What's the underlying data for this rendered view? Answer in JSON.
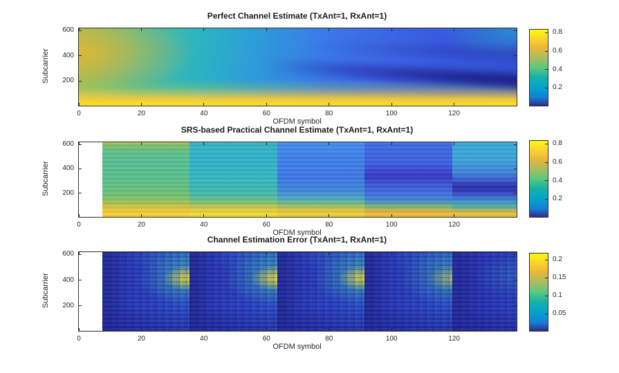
{
  "figure": {
    "background": "#ffffff",
    "colormap": "parula",
    "colormap_stops": [
      "#352a87",
      "#1480d6",
      "#06a4ca",
      "#16b0a7",
      "#59c97e",
      "#a5be64",
      "#e6b63b",
      "#fcd030",
      "#f9fb0e"
    ],
    "text_color": "#262626",
    "axis_color": "#2b2b2b"
  },
  "panels": [
    {
      "title": "Perfect Channel Estimate (TxAnt=1, RxAnt=1)",
      "xlabel": "OFDM symbol",
      "ylabel": "Subcarrier",
      "x_range": [
        0,
        140
      ],
      "y_range": [
        0,
        624
      ],
      "x_ticks": [
        0,
        20,
        40,
        60,
        80,
        100,
        120
      ],
      "y_ticks": [
        200,
        400,
        600
      ],
      "colorbar": {
        "range": [
          0,
          0.84
        ],
        "ticks": [
          0.2,
          0.4,
          0.6,
          0.8
        ]
      }
    },
    {
      "title": "SRS-based Practical Channel Estimate (TxAnt=1, RxAnt=1)",
      "xlabel": "OFDM symbol",
      "ylabel": "Subcarrier",
      "x_range": [
        0,
        140
      ],
      "y_range": [
        0,
        624
      ],
      "x_ticks": [
        0,
        20,
        40,
        60,
        80,
        100,
        120
      ],
      "y_ticks": [
        200,
        400,
        600
      ],
      "colorbar": {
        "range": [
          0,
          0.84
        ],
        "ticks": [
          0.2,
          0.4,
          0.6,
          0.8
        ]
      }
    },
    {
      "title": "Channel Estimation Error (TxAnt=1, RxAnt=1)",
      "xlabel": "OFDM symbol",
      "ylabel": "Subcarrier",
      "x_range": [
        0,
        140
      ],
      "y_range": [
        0,
        624
      ],
      "x_ticks": [
        0,
        20,
        40,
        60,
        80,
        100,
        120
      ],
      "y_ticks": [
        200,
        400,
        600
      ],
      "colorbar": {
        "range": [
          0,
          0.22
        ],
        "ticks": [
          0.05,
          0.1,
          0.15,
          0.2
        ]
      }
    }
  ],
  "chart_data": [
    {
      "type": "heatmap",
      "title": "Perfect Channel Estimate (TxAnt=1, RxAnt=1)",
      "xlabel": "OFDM symbol",
      "ylabel": "Subcarrier",
      "x_range": [
        0,
        140
      ],
      "y_range": [
        0,
        624
      ],
      "color_range": [
        0,
        0.84
      ],
      "legend_position": "colorbar-right",
      "grid": false,
      "x": [
        5,
        20,
        34,
        48,
        62,
        76,
        90,
        104,
        118,
        132
      ],
      "y_subcarrier": [
        600,
        500,
        400,
        300,
        200,
        100,
        50
      ],
      "values": [
        [
          0.72,
          0.62,
          0.52,
          0.45,
          0.4,
          0.36,
          0.32,
          0.3,
          0.28,
          0.33
        ],
        [
          0.65,
          0.55,
          0.48,
          0.43,
          0.38,
          0.33,
          0.3,
          0.28,
          0.26,
          0.3
        ],
        [
          0.6,
          0.52,
          0.47,
          0.42,
          0.36,
          0.3,
          0.26,
          0.22,
          0.2,
          0.22
        ],
        [
          0.62,
          0.55,
          0.5,
          0.44,
          0.38,
          0.3,
          0.22,
          0.16,
          0.14,
          0.12
        ],
        [
          0.68,
          0.6,
          0.55,
          0.5,
          0.44,
          0.38,
          0.32,
          0.26,
          0.2,
          0.12
        ],
        [
          0.78,
          0.75,
          0.72,
          0.7,
          0.66,
          0.6,
          0.52,
          0.46,
          0.4,
          0.36
        ],
        [
          0.82,
          0.83,
          0.84,
          0.84,
          0.82,
          0.8,
          0.76,
          0.72,
          0.68,
          0.62
        ]
      ],
      "notes": "smooth fading surface; yellow band at low subcarriers, dark diagonal fade streak toward high symbols"
    },
    {
      "type": "heatmap",
      "title": "SRS-based Practical Channel Estimate (TxAnt=1, RxAnt=1)",
      "xlabel": "OFDM symbol",
      "ylabel": "Subcarrier",
      "x_range": [
        0,
        140
      ],
      "y_range": [
        0,
        624
      ],
      "color_range": [
        0,
        0.84
      ],
      "legend_position": "colorbar-right",
      "grid": false,
      "blank_region_symbols": [
        0,
        8
      ],
      "block_boundaries": [
        8,
        35,
        63,
        91,
        119,
        140
      ],
      "x_block_centers": [
        21,
        49,
        77,
        105,
        129
      ],
      "y_subcarrier": [
        600,
        500,
        400,
        300,
        200,
        100,
        50
      ],
      "values": [
        [
          0.62,
          0.47,
          0.34,
          0.3,
          0.42
        ],
        [
          0.55,
          0.46,
          0.32,
          0.28,
          0.4
        ],
        [
          0.55,
          0.45,
          0.31,
          0.26,
          0.33
        ],
        [
          0.56,
          0.46,
          0.32,
          0.16,
          0.3
        ],
        [
          0.58,
          0.48,
          0.36,
          0.3,
          0.1
        ],
        [
          0.66,
          0.6,
          0.55,
          0.5,
          0.45
        ],
        [
          0.78,
          0.82,
          0.82,
          0.72,
          0.66
        ]
      ],
      "notes": "piecewise-constant in time per SRS period; white (no estimate) before symbol 8"
    },
    {
      "type": "heatmap",
      "title": "Channel Estimation Error (TxAnt=1, RxAnt=1)",
      "xlabel": "OFDM symbol",
      "ylabel": "Subcarrier",
      "x_range": [
        0,
        140
      ],
      "y_range": [
        0,
        624
      ],
      "color_range": [
        0,
        0.22
      ],
      "legend_position": "colorbar-right",
      "grid": false,
      "blank_region_symbols": [
        0,
        8
      ],
      "block_boundaries": [
        8,
        35,
        63,
        91,
        119,
        140
      ],
      "x_block_start_end": [
        10,
        33,
        38,
        61,
        66,
        89,
        94,
        117,
        122,
        137
      ],
      "y_subcarrier": [
        600,
        500,
        400,
        300,
        200,
        100,
        50
      ],
      "values": [
        [
          0.04,
          0.1,
          0.04,
          0.1,
          0.04,
          0.09,
          0.03,
          0.08,
          0.03,
          0.05
        ],
        [
          0.05,
          0.15,
          0.05,
          0.14,
          0.05,
          0.13,
          0.04,
          0.1,
          0.03,
          0.06
        ],
        [
          0.06,
          0.21,
          0.05,
          0.2,
          0.05,
          0.2,
          0.04,
          0.13,
          0.03,
          0.07
        ],
        [
          0.05,
          0.13,
          0.04,
          0.12,
          0.04,
          0.12,
          0.04,
          0.09,
          0.03,
          0.06
        ],
        [
          0.03,
          0.08,
          0.03,
          0.07,
          0.03,
          0.08,
          0.03,
          0.06,
          0.02,
          0.05
        ],
        [
          0.02,
          0.05,
          0.02,
          0.05,
          0.02,
          0.05,
          0.02,
          0.04,
          0.02,
          0.04
        ],
        [
          0.02,
          0.04,
          0.02,
          0.04,
          0.02,
          0.04,
          0.02,
          0.03,
          0.02,
          0.03
        ]
      ],
      "notes": "error grows within each SRS period, peaking near subcarrier ~420 at block ends; noisy vertical texture"
    }
  ]
}
